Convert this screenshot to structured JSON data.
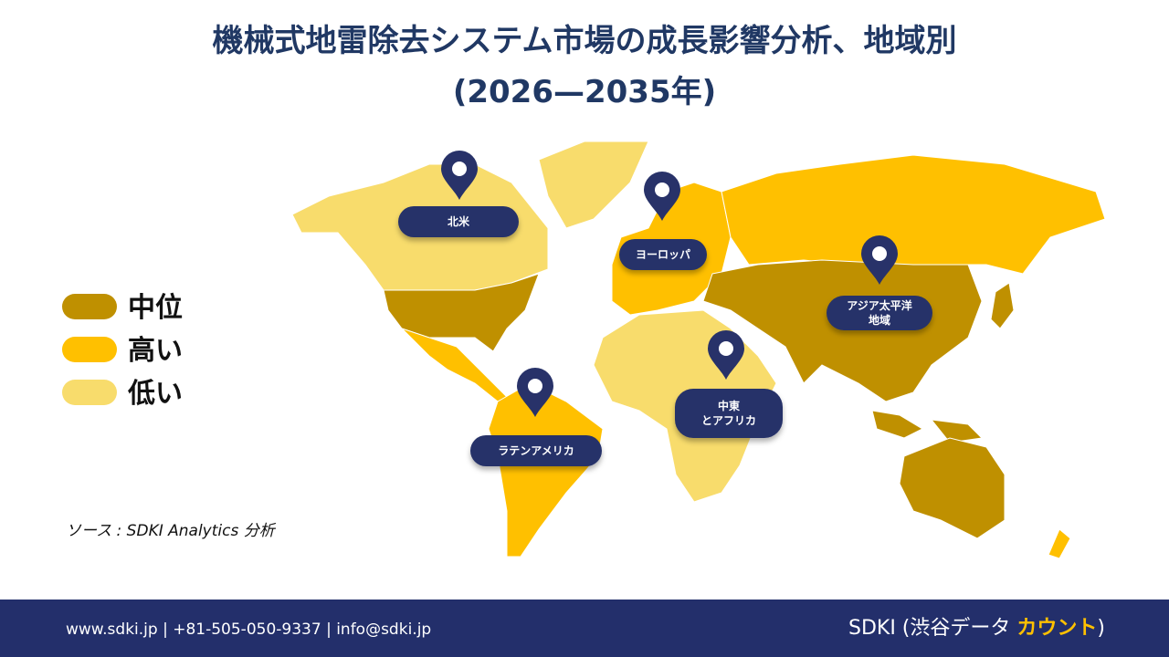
{
  "header": {
    "title": "機械式地雷除去システム市場の成長影響分析、地域別",
    "subtitle": "(2026—2035年)"
  },
  "legend": [
    {
      "label": "中位",
      "color": "#bf9000"
    },
    {
      "label": "高い",
      "color": "#ffc000"
    },
    {
      "label": "低い",
      "color": "#f8dc6c"
    }
  ],
  "regions": [
    {
      "lines": [
        "北米"
      ]
    },
    {
      "lines": [
        "ヨーロッパ"
      ]
    },
    {
      "lines": [
        "アジア太平洋",
        "地域"
      ]
    },
    {
      "lines": [
        "中東",
        "とアフリカ"
      ]
    },
    {
      "lines": [
        "ラテンアメリカ"
      ]
    }
  ],
  "source": "ソース : SDKI Analytics 分析",
  "footer": {
    "contact": "www.sdki.jp | +81-505-050-9337 | info@sdki.jp",
    "brand": "SDKI (渋谷データ",
    "brand_accent": "カウント",
    "brand_close": ")"
  }
}
